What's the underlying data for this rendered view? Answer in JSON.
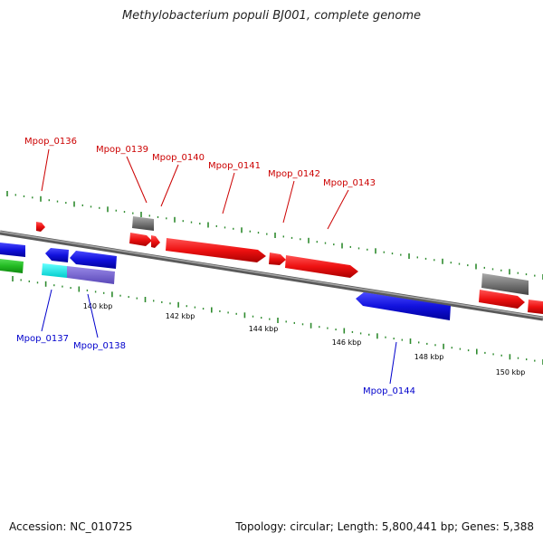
{
  "title": "Methylobacterium populi BJ001, complete genome",
  "footer": {
    "accession": "Accession: NC_010725",
    "summary": "Topology: circular; Length: 5,800,441 bp; Genes: 5,388"
  },
  "colors": {
    "forward_gene": "#ee1111",
    "reverse_gene": "#1111dd",
    "rna_gene": "#777777",
    "backbone": "#888888",
    "tick": "#2e8b2e",
    "forward_label": "#cc0000",
    "reverse_label": "#0000cc"
  },
  "ruler": {
    "ticks": [
      "140 kbp",
      "142 kbp",
      "144 kbp",
      "146 kbp",
      "148 kbp",
      "150 kbp"
    ]
  },
  "labels": {
    "forward": [
      "Mpop_0136",
      "Mpop_0139",
      "Mpop_0140",
      "Mpop_0141",
      "Mpop_0142",
      "Mpop_0143"
    ],
    "reverse": [
      "Mpop_0137",
      "Mpop_0138",
      "Mpop_0144"
    ]
  }
}
